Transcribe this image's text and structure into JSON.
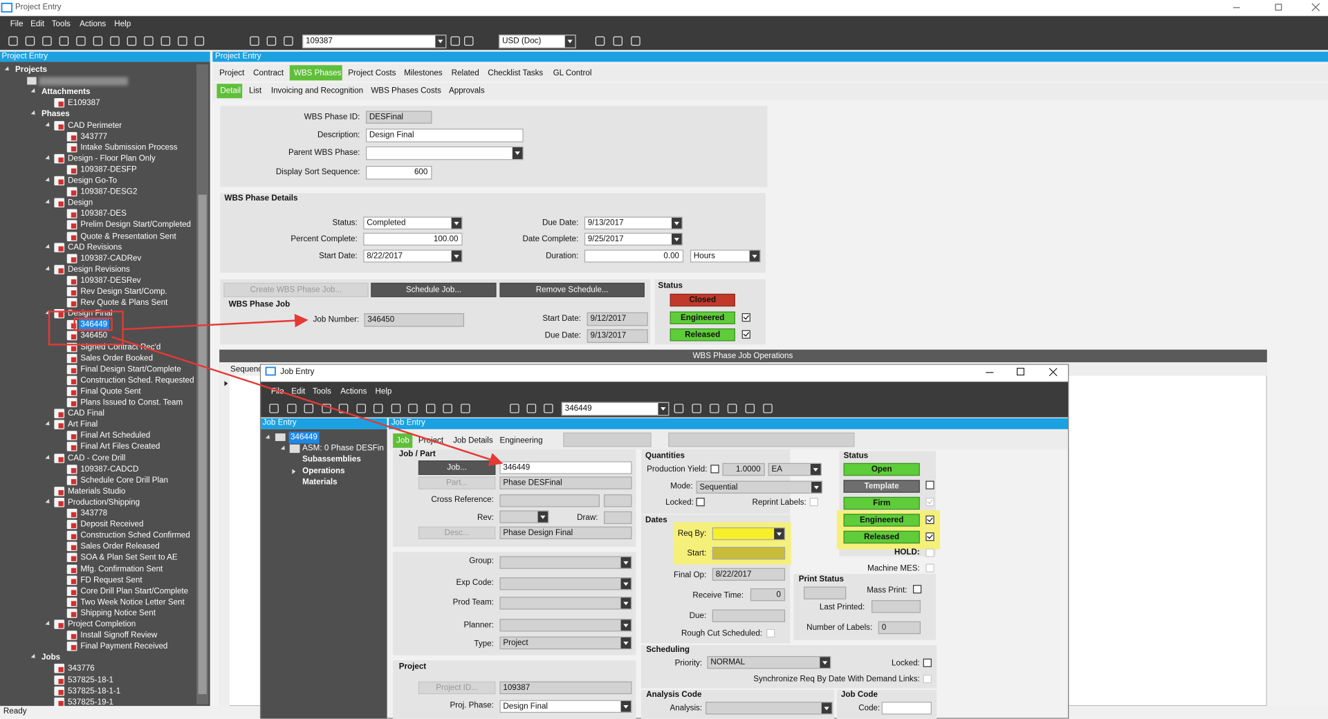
{
  "title_bar": {
    "title": "Project Entry"
  },
  "menu": [
    "File",
    "Edit",
    "Tools",
    "Actions",
    "Help"
  ],
  "toolbar": {
    "record": "109387",
    "currency": "USD (Doc)"
  },
  "tree_panel": {
    "title": "Project Entry",
    "tree": {
      "label": "Projects",
      "children": [
        {
          "children": [
            {
              "label": "Attachments",
              "children": [
                {
                  "label": "E109387"
                }
              ]
            },
            {
              "label": "Phases",
              "children": [
                {
                  "label": "CAD Perimeter",
                  "children": [
                    {
                      "label": "343777"
                    },
                    {
                      "label": "Intake Submission Process"
                    }
                  ]
                },
                {
                  "label": "Design - Floor Plan Only",
                  "children": [
                    {
                      "label": "109387-DESFP"
                    }
                  ]
                },
                {
                  "label": "Design Go-To",
                  "children": [
                    {
                      "label": "109387-DESG2"
                    }
                  ]
                },
                {
                  "label": "Design",
                  "children": [
                    {
                      "label": "109387-DES"
                    },
                    {
                      "label": "Prelim Design Start/Completed"
                    },
                    {
                      "label": "Quote & Presentation Sent"
                    }
                  ]
                },
                {
                  "label": "CAD Revisions",
                  "children": [
                    {
                      "label": "109387-CADRev"
                    }
                  ]
                },
                {
                  "label": "Design Revisions",
                  "children": [
                    {
                      "label": "109387-DESRev"
                    },
                    {
                      "label": "Rev Design Start/Comp."
                    },
                    {
                      "label": "Rev Quote & Plans Sent"
                    }
                  ]
                },
                {
                  "label": "Design Final",
                  "children": [
                    {
                      "label": "346449"
                    },
                    {
                      "label": "346450"
                    },
                    {
                      "label": "Signed Contract Rec'd"
                    },
                    {
                      "label": "Sales Order Booked"
                    },
                    {
                      "label": "Final Design Start/Complete"
                    },
                    {
                      "label": "Construction Sched. Requested"
                    },
                    {
                      "label": "Final Quote Sent"
                    },
                    {
                      "label": "Plans Issued to Const. Team"
                    }
                  ]
                },
                {
                  "label": "CAD Final"
                },
                {
                  "label": "Art Final",
                  "children": [
                    {
                      "label": "Final Art Scheduled"
                    },
                    {
                      "label": "Final Art Files Created"
                    }
                  ]
                },
                {
                  "label": "CAD - Core Drill",
                  "children": [
                    {
                      "label": "109387-CADCD"
                    },
                    {
                      "label": "Schedule Core Drill Plan"
                    }
                  ]
                },
                {
                  "label": "Materials Studio"
                },
                {
                  "label": "Production/Shipping",
                  "children": [
                    {
                      "label": "343778"
                    },
                    {
                      "label": "Deposit Received"
                    },
                    {
                      "label": "Construction Sched Confirmed"
                    },
                    {
                      "label": "Sales Order Released"
                    },
                    {
                      "label": "SOA & Plan Set Sent to AE"
                    },
                    {
                      "label": "Mfg. Confirmation Sent"
                    },
                    {
                      "label": "FD Request Sent"
                    },
                    {
                      "label": "Core Drill Plan Start/Complete"
                    },
                    {
                      "label": "Two Week Notice Letter Sent"
                    },
                    {
                      "label": "Shipping Notice Sent"
                    }
                  ]
                },
                {
                  "label": "Project Completion",
                  "children": [
                    {
                      "label": "Install Signoff Review"
                    },
                    {
                      "label": "Final Payment Received"
                    }
                  ]
                }
              ]
            },
            {
              "label": "Jobs",
              "children": [
                {
                  "label": "343776"
                },
                {
                  "label": "537825-18-1"
                },
                {
                  "label": "537825-18-1-1"
                },
                {
                  "label": "537825-19-1"
                }
              ]
            }
          ]
        }
      ]
    }
  },
  "main": {
    "title": "Project Entry",
    "tabs": [
      "Project",
      "Contract",
      "WBS Phases",
      "Project Costs",
      "Milestones",
      "Related",
      "Checklist Tasks",
      "GL Control"
    ],
    "subtabs": [
      "Detail",
      "List",
      "Invoicing and Recognition",
      "WBS Phases Costs",
      "Approvals"
    ],
    "phase_fields": [
      {
        "label": "WBS Phase ID:",
        "value": "DESFinal"
      },
      {
        "label": "Description:",
        "value": "Design Final"
      },
      {
        "label": "Parent WBS Phase:"
      },
      {
        "label": "Display Sort Sequence:",
        "value": "600"
      }
    ],
    "details": {
      "title": "WBS Phase Details",
      "fields": [
        {
          "label": "Status:",
          "value": "Completed"
        },
        {
          "label": "Percent Complete:",
          "value": "100.00"
        },
        {
          "label": "Start Date:",
          "value": "8/22/2017"
        },
        {
          "label": "Due Date:",
          "value": "9/13/2017"
        },
        {
          "label": "Date Complete:",
          "value": "9/25/2017"
        },
        {
          "label": "Duration:",
          "value": "0.00"
        }
      ],
      "duration_unit": "Hours"
    },
    "job": {
      "buttons": [
        "Create WBS Phase Job...",
        "Schedule Job...",
        "Remove Schedule..."
      ],
      "title": "WBS Phase Job",
      "fields": [
        {
          "label": "Job Number:",
          "value": "346450"
        },
        {
          "label": "Start Date:",
          "value": "9/12/2017"
        },
        {
          "label": "Due Date:",
          "value": "9/13/2017"
        }
      ]
    },
    "status": {
      "title": "Status",
      "items": [
        "Closed",
        "Engineered",
        "Released"
      ]
    },
    "operations": {
      "title": "WBS Phase Job Operations",
      "column": "Sequence"
    }
  },
  "job_entry": {
    "title": "Job Entry",
    "menu": [
      "File",
      "Edit",
      "Tools",
      "Actions",
      "Help"
    ],
    "record": "346449",
    "tree_title": "Job Entry",
    "tree": {
      "label": "346449",
      "children": [
        {
          "label": "ASM: 0 Phase DESFin",
          "children": [
            {
              "label": "Subassemblies"
            },
            {
              "label": "Operations"
            },
            {
              "label": "Materials"
            }
          ]
        }
      ]
    },
    "form_title": "Job Entry",
    "tabs": [
      "Job",
      "Project",
      "Job Details",
      "Engineering"
    ],
    "job_part": {
      "title": "Job / Part",
      "buttons": [
        "Job...",
        "Part...",
        "Desc..."
      ],
      "job": "346449",
      "part": "Phase DESFinal",
      "desc": "Phase Design Final",
      "labels": [
        "Cross Reference:",
        "Rev:",
        "Draw:"
      ]
    },
    "classification": [
      {
        "label": "Group:"
      },
      {
        "label": "Exp Code:"
      },
      {
        "label": "Prod Team:"
      },
      {
        "label": "Planner:"
      },
      {
        "label": "Type:",
        "value": "Project"
      }
    ],
    "project": {
      "title": "Project",
      "button": "Project ID...",
      "id": "109387",
      "phase_label": "Proj. Phase:",
      "phase": "Design Final"
    },
    "quantities": {
      "title": "Quantities",
      "yield_label": "Production Yield:",
      "yield": "1.0000",
      "uom": "EA",
      "mode_label": "Mode:",
      "mode": "Sequential",
      "locked_label": "Locked:",
      "reprint_label": "Reprint Labels:"
    },
    "dates": {
      "title": "Dates",
      "labels": [
        "Req By:",
        "Start:",
        "Final Op:",
        "Receive Time:",
        "Due:",
        "Rough Cut Scheduled:"
      ],
      "final_op": "8/22/2017",
      "receive_time": "0"
    },
    "scheduling": {
      "title": "Scheduling",
      "priority_label": "Priority:",
      "priority": "NORMAL",
      "locked_label": "Locked:",
      "sync_label": "Synchronize Req By Date With Demand Links:"
    },
    "analysis": {
      "title": "Analysis Code",
      "label": "Analysis:"
    },
    "job_code": {
      "title": "Job Code",
      "label": "Code:"
    },
    "status": {
      "title": "Status",
      "buttons": [
        "Open",
        "Template",
        "Firm",
        "Engineered",
        "Released"
      ],
      "hold_label": "HOLD:",
      "mes_label": "Machine MES:"
    },
    "print_status": {
      "title": "Print Status",
      "mass_label": "Mass Print:",
      "last_label": "Last Printed:",
      "count_label": "Number of Labels:",
      "count": "0"
    }
  },
  "status_bar": "Ready"
}
